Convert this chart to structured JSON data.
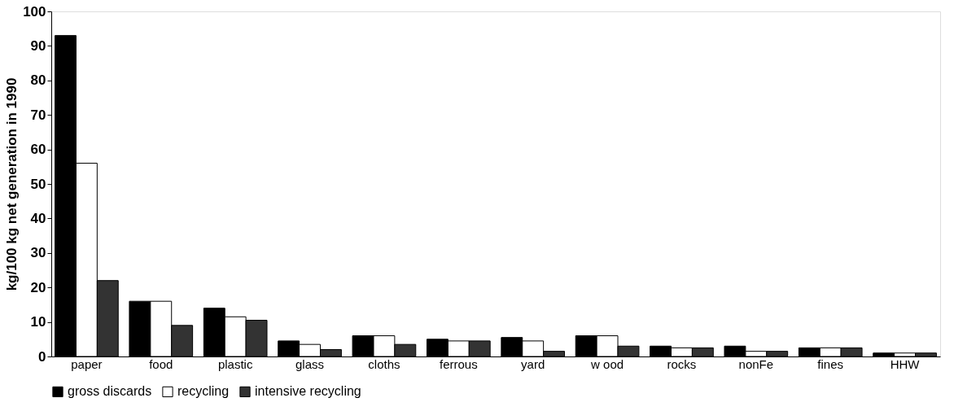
{
  "chart_data": {
    "type": "bar",
    "ylabel": "kg/100 kg net generation in 1990",
    "categories": [
      "paper",
      "food",
      "plastic",
      "glass",
      "cloths",
      "ferrous",
      "yard",
      "w ood",
      "rocks",
      "nonFe",
      "fines",
      "HHW"
    ],
    "series": [
      {
        "name": "gross discards",
        "color": "#000000",
        "values": [
          93,
          16,
          14,
          4.5,
          6,
          5,
          5.5,
          6,
          3,
          3,
          2.5,
          1
        ]
      },
      {
        "name": "recycling",
        "color": "#ffffff",
        "values": [
          56,
          16,
          11.5,
          3.5,
          6,
          4.5,
          4.5,
          6,
          2.5,
          1.5,
          2.5,
          1
        ]
      },
      {
        "name": "intensive recycling",
        "color": "#333333",
        "values": [
          22,
          9,
          10.5,
          2,
          3.5,
          4.5,
          1.5,
          3,
          2.5,
          1.5,
          2.5,
          1
        ]
      }
    ],
    "ylim": [
      0,
      100
    ],
    "yticks": [
      0,
      10,
      20,
      30,
      40,
      50,
      60,
      70,
      80,
      90,
      100
    ],
    "grid": false,
    "legend": "bottom"
  }
}
